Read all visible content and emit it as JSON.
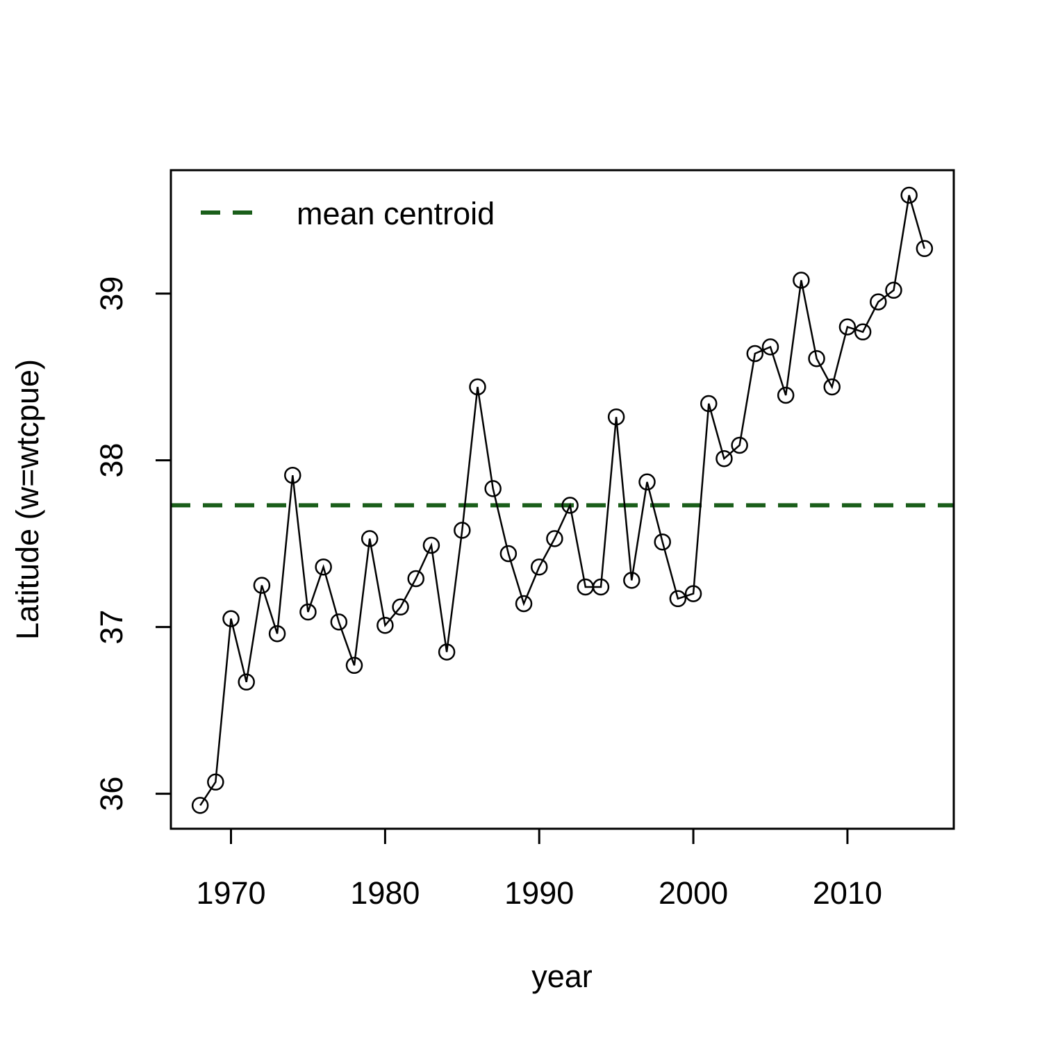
{
  "chart_data": {
    "type": "line",
    "title": "",
    "xlabel": "year",
    "ylabel": "Latitude (w=wtcpue)",
    "xlim": [
      1966.1,
      2016.9
    ],
    "ylim": [
      35.79,
      39.74
    ],
    "x_ticks": [
      1970,
      1980,
      1990,
      2000,
      2010
    ],
    "y_ticks": [
      36,
      37,
      38,
      39
    ],
    "x_tick_labels": [
      "1970",
      "1980",
      "1990",
      "2000",
      "2010"
    ],
    "y_tick_labels": [
      "36",
      "37",
      "38",
      "39"
    ],
    "grid": false,
    "legend_position": "top-left",
    "mean_centroid": 37.73,
    "mean_color": "#1a5e1a",
    "series": [
      {
        "name": "",
        "marker": "open-circle",
        "color": "#000000",
        "x": [
          1968,
          1969,
          1970,
          1971,
          1972,
          1973,
          1974,
          1975,
          1976,
          1977,
          1978,
          1979,
          1980,
          1981,
          1982,
          1983,
          1984,
          1985,
          1986,
          1987,
          1988,
          1989,
          1990,
          1991,
          1992,
          1993,
          1994,
          1995,
          1996,
          1997,
          1998,
          1999,
          2000,
          2001,
          2002,
          2003,
          2004,
          2005,
          2006,
          2007,
          2008,
          2009,
          2010,
          2011,
          2012,
          2013,
          2014,
          2015
        ],
        "y": [
          35.93,
          36.07,
          37.05,
          36.67,
          37.25,
          36.96,
          37.91,
          37.09,
          37.36,
          37.03,
          36.77,
          37.53,
          37.01,
          37.12,
          37.29,
          37.49,
          36.85,
          37.58,
          38.44,
          37.83,
          37.44,
          37.14,
          37.36,
          37.53,
          37.73,
          37.24,
          37.24,
          38.26,
          37.28,
          37.87,
          37.51,
          37.17,
          37.2,
          38.34,
          38.01,
          38.09,
          38.64,
          38.68,
          38.39,
          39.08,
          38.61,
          38.44,
          38.8,
          38.77,
          38.95,
          39.02,
          39.59,
          39.27
        ]
      }
    ],
    "legend": [
      {
        "label": "mean centroid",
        "style": "dashed",
        "color": "#1a5e1a"
      }
    ]
  }
}
